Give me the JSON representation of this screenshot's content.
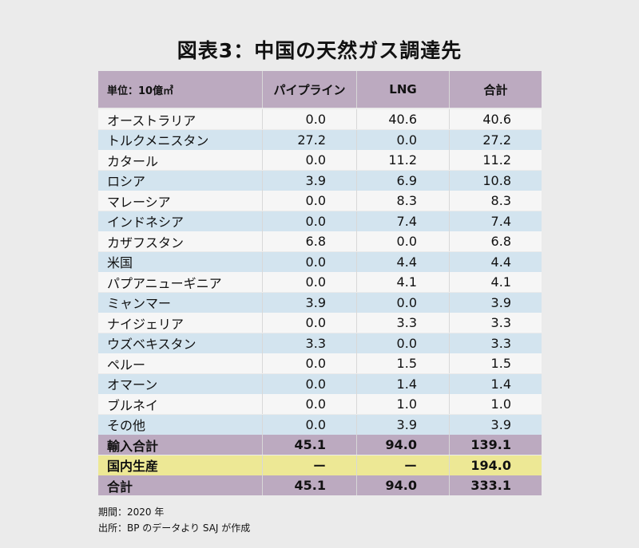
{
  "title": "図表3：中国の天然ガス調達先",
  "chart_data": {
    "type": "table",
    "title": "図表3：中国の天然ガス調達先",
    "columns": [
      "単位：10億㎥",
      "パイプライン",
      "LNG",
      "合計"
    ],
    "rows": [
      {
        "name": "オーストラリア",
        "pipeline": "0.0",
        "lng": "40.6",
        "total": "40.6",
        "style": "white"
      },
      {
        "name": "トルクメニスタン",
        "pipeline": "27.2",
        "lng": "0.0",
        "total": "27.2",
        "style": "blue"
      },
      {
        "name": "カタール",
        "pipeline": "0.0",
        "lng": "11.2",
        "total": "11.2",
        "style": "white"
      },
      {
        "name": "ロシア",
        "pipeline": "3.9",
        "lng": "6.9",
        "total": "10.8",
        "style": "blue"
      },
      {
        "name": "マレーシア",
        "pipeline": "0.0",
        "lng": "8.3",
        "total": "8.3",
        "style": "white"
      },
      {
        "name": "インドネシア",
        "pipeline": "0.0",
        "lng": "7.4",
        "total": "7.4",
        "style": "blue"
      },
      {
        "name": "カザフスタン",
        "pipeline": "6.8",
        "lng": "0.0",
        "total": "6.8",
        "style": "white"
      },
      {
        "name": "米国",
        "pipeline": "0.0",
        "lng": "4.4",
        "total": "4.4",
        "style": "blue"
      },
      {
        "name": "パプアニューギニア",
        "pipeline": "0.0",
        "lng": "4.1",
        "total": "4.1",
        "style": "white"
      },
      {
        "name": "ミャンマー",
        "pipeline": "3.9",
        "lng": "0.0",
        "total": "3.9",
        "style": "blue"
      },
      {
        "name": "ナイジェリア",
        "pipeline": "0.0",
        "lng": "3.3",
        "total": "3.3",
        "style": "white"
      },
      {
        "name": "ウズベキスタン",
        "pipeline": "3.3",
        "lng": "0.0",
        "total": "3.3",
        "style": "blue"
      },
      {
        "name": "ペルー",
        "pipeline": "0.0",
        "lng": "1.5",
        "total": "1.5",
        "style": "white"
      },
      {
        "name": "オマーン",
        "pipeline": "0.0",
        "lng": "1.4",
        "total": "1.4",
        "style": "blue"
      },
      {
        "name": "ブルネイ",
        "pipeline": "0.0",
        "lng": "1.0",
        "total": "1.0",
        "style": "white"
      },
      {
        "name": "その他",
        "pipeline": "0.0",
        "lng": "3.9",
        "total": "3.9",
        "style": "blue"
      },
      {
        "name": "輸入合計",
        "pipeline": "45.1",
        "lng": "94.0",
        "total": "139.1",
        "style": "purple"
      },
      {
        "name": "国内生産",
        "pipeline": "ー",
        "lng": "ー",
        "total": "194.0",
        "style": "yellow"
      },
      {
        "name": "合計",
        "pipeline": "45.1",
        "lng": "94.0",
        "total": "333.1",
        "style": "purple"
      }
    ]
  },
  "footnotes": {
    "period": "期間：2020 年",
    "source": "出所：BP のデータより SAJ が作成"
  }
}
